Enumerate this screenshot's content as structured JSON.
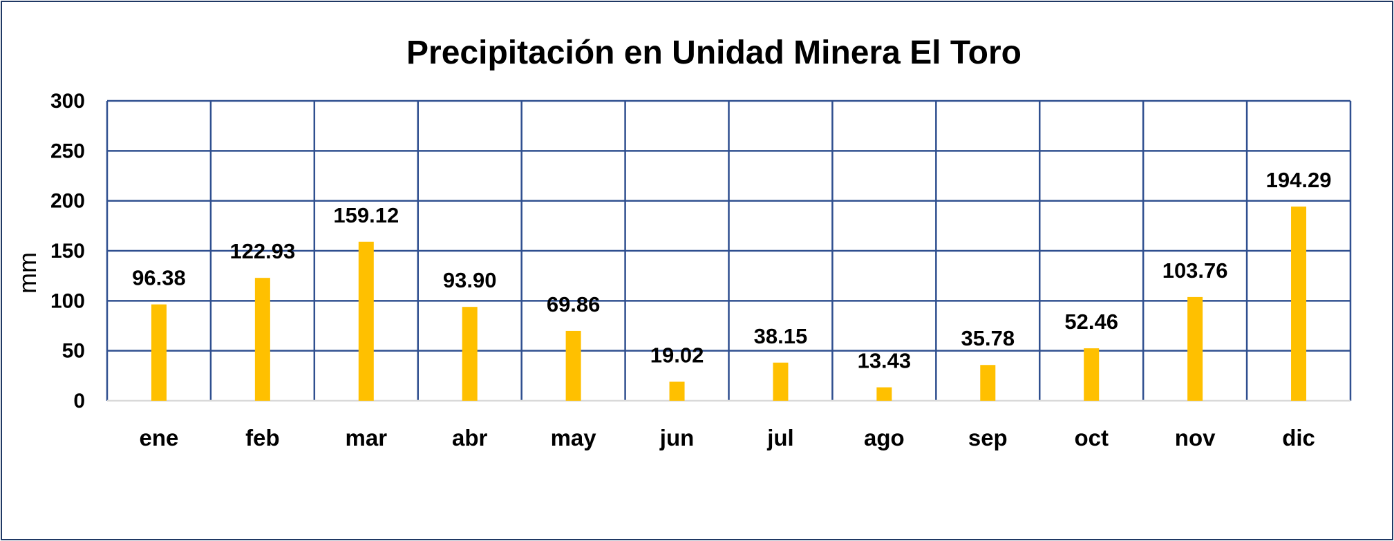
{
  "chart_data": {
    "type": "bar",
    "title": "Precipitación en Unidad Minera El Toro",
    "xlabel": "",
    "ylabel": "mm",
    "ylim": [
      0,
      300
    ],
    "yticks": [
      0,
      50,
      100,
      150,
      200,
      250,
      300
    ],
    "categories": [
      "ene",
      "feb",
      "mar",
      "abr",
      "may",
      "jun",
      "jul",
      "ago",
      "sep",
      "oct",
      "nov",
      "dic"
    ],
    "values": [
      96.38,
      122.93,
      159.12,
      93.9,
      69.86,
      19.02,
      38.15,
      13.43,
      35.78,
      52.46,
      103.76,
      194.29
    ],
    "data_labels": [
      "96.38",
      "122.93",
      "159.12",
      "93.90",
      "69.86",
      "19.02",
      "38.15",
      "13.43",
      "35.78",
      "52.46",
      "103.76",
      "194.29"
    ],
    "grid": "both",
    "legend": "none",
    "bar_color": "#ffc000",
    "grid_color": "#2f4f8f",
    "border_color": "#1f3864"
  }
}
